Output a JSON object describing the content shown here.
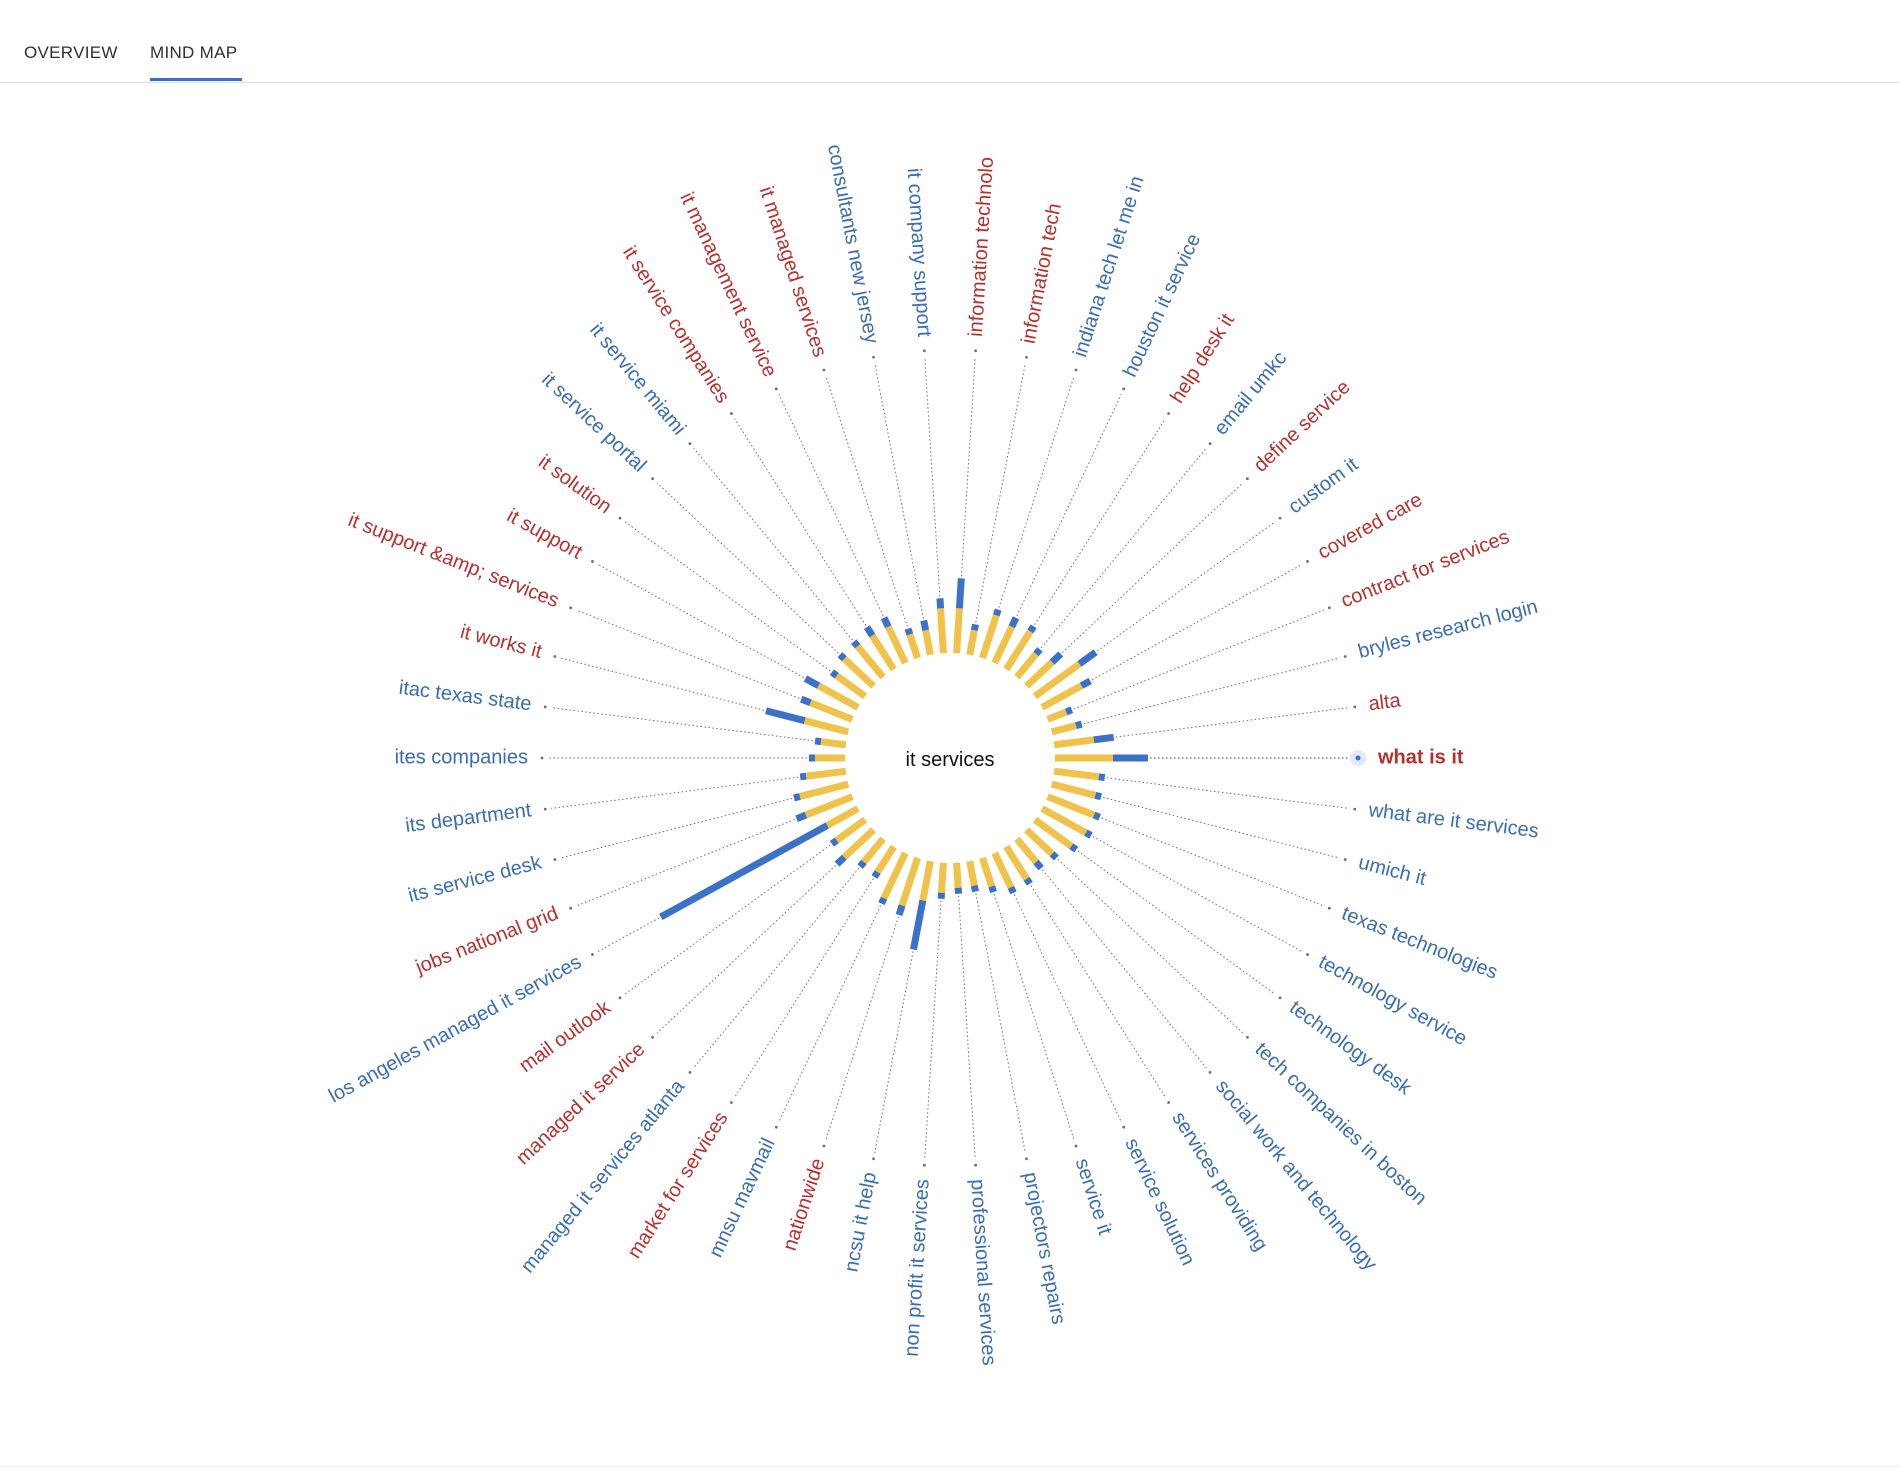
{
  "tabs": [
    {
      "label": "OVERVIEW",
      "active": false
    },
    {
      "label": "MIND MAP",
      "active": true
    }
  ],
  "colors": {
    "red": "#b5312e",
    "blue": "#3a6db3",
    "bar_yellow": "#f1c24a",
    "bar_blue": "#3b72c8",
    "tab_underline": "#3b6fc4"
  },
  "mind_map": {
    "center_label": "it services",
    "selected_keyword": "what is it",
    "keywords": [
      {
        "text": "what is it",
        "color": "red",
        "yellow": 0.58,
        "blue": 0.35,
        "selected": true
      },
      {
        "text": "what are it services",
        "color": "blue",
        "yellow": 0.45,
        "blue": 0.06
      },
      {
        "text": "umich it",
        "color": "blue",
        "yellow": 0.45,
        "blue": 0.06
      },
      {
        "text": "texas technologies",
        "color": "blue",
        "yellow": 0.5,
        "blue": 0.06
      },
      {
        "text": "technology service",
        "color": "blue",
        "yellow": 0.5,
        "blue": 0.06
      },
      {
        "text": "technology desk",
        "color": "blue",
        "yellow": 0.45,
        "blue": 0.06
      },
      {
        "text": "tech companies in boston",
        "color": "blue",
        "yellow": 0.35,
        "blue": 0.06
      },
      {
        "text": "social work and technology",
        "color": "blue",
        "yellow": 0.3,
        "blue": 0.08
      },
      {
        "text": "services providing",
        "color": "blue",
        "yellow": 0.38,
        "blue": 0.06
      },
      {
        "text": "service solution",
        "color": "blue",
        "yellow": 0.38,
        "blue": 0.06
      },
      {
        "text": "service it",
        "color": "blue",
        "yellow": 0.3,
        "blue": 0.06
      },
      {
        "text": "projectors repairs",
        "color": "blue",
        "yellow": 0.25,
        "blue": 0.06
      },
      {
        "text": "professional services",
        "color": "blue",
        "yellow": 0.25,
        "blue": 0.06
      },
      {
        "text": "non profit it services",
        "color": "blue",
        "yellow": 0.3,
        "blue": 0.06
      },
      {
        "text": "ncsu it help",
        "color": "blue",
        "yellow": 0.4,
        "blue": 0.5
      },
      {
        "text": "nationwide",
        "color": "red",
        "yellow": 0.5,
        "blue": 0.1
      },
      {
        "text": "mnsu mavmail",
        "color": "blue",
        "yellow": 0.5,
        "blue": 0.06
      },
      {
        "text": "market for services",
        "color": "red",
        "yellow": 0.3,
        "blue": 0.06
      },
      {
        "text": "managed it services atlanta",
        "color": "blue",
        "yellow": 0.3,
        "blue": 0.06
      },
      {
        "text": "managed it service",
        "color": "red",
        "yellow": 0.4,
        "blue": 0.1
      },
      {
        "text": "mail outlook",
        "color": "red",
        "yellow": 0.35,
        "blue": 0.06
      },
      {
        "text": "los angeles managed it services",
        "color": "blue",
        "yellow": 0.35,
        "blue": 1.9
      },
      {
        "text": "jobs national grid",
        "color": "red",
        "yellow": 0.5,
        "blue": 0.1
      },
      {
        "text": "its service desk",
        "color": "blue",
        "yellow": 0.5,
        "blue": 0.06
      },
      {
        "text": "its department",
        "color": "blue",
        "yellow": 0.4,
        "blue": 0.06
      },
      {
        "text": "ites companies",
        "color": "blue",
        "yellow": 0.3,
        "blue": 0.06
      },
      {
        "text": "itac texas state",
        "color": "blue",
        "yellow": 0.25,
        "blue": 0.06
      },
      {
        "text": "it works it",
        "color": "red",
        "yellow": 0.45,
        "blue": 0.4
      },
      {
        "text": "it support &amp; services",
        "color": "red",
        "yellow": 0.45,
        "blue": 0.1
      },
      {
        "text": "it support",
        "color": "red",
        "yellow": 0.45,
        "blue": 0.15
      },
      {
        "text": "it solution",
        "color": "red",
        "yellow": 0.35,
        "blue": 0.06
      },
      {
        "text": "it service portal",
        "color": "blue",
        "yellow": 0.4,
        "blue": 0.06
      },
      {
        "text": "it service miami",
        "color": "blue",
        "yellow": 0.4,
        "blue": 0.06
      },
      {
        "text": "it service companies",
        "color": "red",
        "yellow": 0.4,
        "blue": 0.1
      },
      {
        "text": "it management service",
        "color": "red",
        "yellow": 0.4,
        "blue": 0.1
      },
      {
        "text": "it managed services",
        "color": "red",
        "yellow": 0.25,
        "blue": 0.06
      },
      {
        "text": "consultants new jersey",
        "color": "blue",
        "yellow": 0.25,
        "blue": 0.1
      },
      {
        "text": "it company support",
        "color": "blue",
        "yellow": 0.45,
        "blue": 0.1
      },
      {
        "text": "information technolo",
        "color": "red",
        "yellow": 0.45,
        "blue": 0.3
      },
      {
        "text": "information tech",
        "color": "red",
        "yellow": 0.25,
        "blue": 0.06
      },
      {
        "text": "indiana tech let me in",
        "color": "blue",
        "yellow": 0.45,
        "blue": 0.06
      },
      {
        "text": "houston it service",
        "color": "blue",
        "yellow": 0.4,
        "blue": 0.1
      },
      {
        "text": "help desk it",
        "color": "red",
        "yellow": 0.45,
        "blue": 0.06
      },
      {
        "text": "email umkc",
        "color": "blue",
        "yellow": 0.3,
        "blue": 0.06
      },
      {
        "text": "define service",
        "color": "red",
        "yellow": 0.35,
        "blue": 0.12
      },
      {
        "text": "custom it",
        "color": "blue",
        "yellow": 0.55,
        "blue": 0.2
      },
      {
        "text": "covered care",
        "color": "red",
        "yellow": 0.45,
        "blue": 0.1
      },
      {
        "text": "contract for services",
        "color": "red",
        "yellow": 0.2,
        "blue": 0.06
      },
      {
        "text": "bryles research login",
        "color": "blue",
        "yellow": 0.25,
        "blue": 0.06
      },
      {
        "text": "alta",
        "color": "red",
        "yellow": 0.4,
        "blue": 0.2
      }
    ]
  }
}
